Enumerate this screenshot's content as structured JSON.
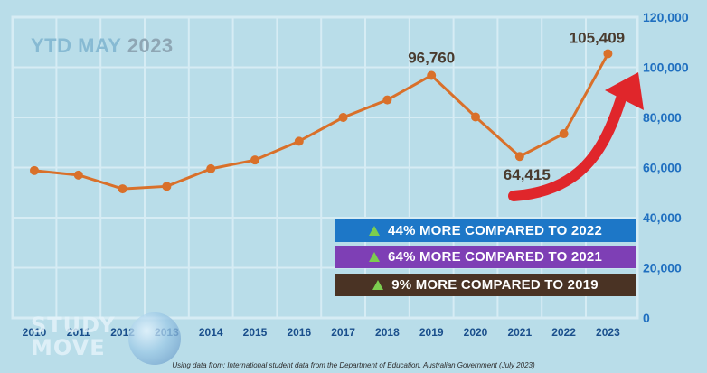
{
  "headline": {
    "part_a": "YTD MAY",
    "part_b": "2023"
  },
  "chart_data": {
    "type": "line",
    "x": [
      "2010",
      "2011",
      "2012",
      "2013",
      "2014",
      "2015",
      "2016",
      "2017",
      "2018",
      "2019",
      "2020",
      "2021",
      "2022",
      "2023"
    ],
    "values": [
      58800,
      57000,
      51500,
      52500,
      59500,
      63000,
      70500,
      80000,
      87000,
      96760,
      80200,
      64415,
      73500,
      105409
    ],
    "point_labels": [
      {
        "x": "2019",
        "text": "96,760"
      },
      {
        "x": "2021",
        "text": "64,415"
      },
      {
        "x": "2023",
        "text": "105,409"
      }
    ],
    "y_ticks": [
      "0",
      "20,000",
      "40,000",
      "60,000",
      "80,000",
      "100,000",
      "120,000"
    ],
    "y_tick_values": [
      0,
      20000,
      40000,
      60000,
      80000,
      100000,
      120000
    ],
    "ylim": [
      0,
      120000
    ],
    "y_axis_side": "right",
    "grid": true,
    "line_color": "#d9702a",
    "title": "",
    "xlabel": "",
    "ylabel": ""
  },
  "callouts": [
    {
      "text": "44% MORE COMPARED TO 2022",
      "color": "#1d77c7"
    },
    {
      "text": "64% MORE COMPARED TO 2021",
      "color": "#7e3fb5"
    },
    {
      "text": "9%  MORE COMPARED TO 2019",
      "color": "#4a3324"
    }
  ],
  "colors": {
    "background": "#b9dde9",
    "grid": "#d6ecf4",
    "axis_text": "#1f6fc0",
    "x_axis_text": "#1a4f8c",
    "label_text": "#4a3b2e",
    "arrow": "#e0262b",
    "up_triangle": "#7ccd4f"
  },
  "icons": {
    "callout_marker": "up-triangle-icon",
    "growth_arrow": "red-up-arrow-icon"
  },
  "logo": {
    "text": "STUDY\nMOVE"
  },
  "footnote": "Using data from: International student data from the Department of Education, Australian Government (July 2023)"
}
